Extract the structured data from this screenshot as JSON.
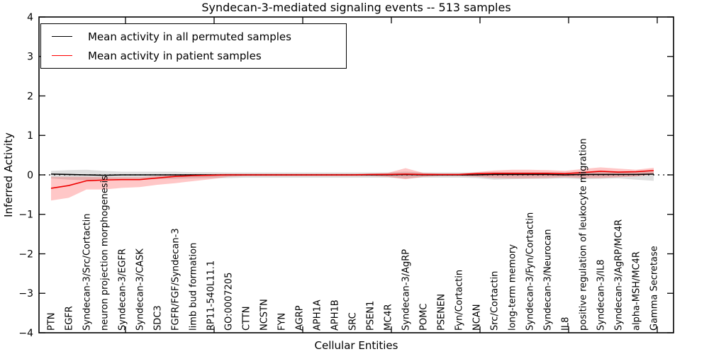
{
  "chart_data": {
    "type": "line",
    "title": "Syndecan-3-mediated signaling events -- 513 samples",
    "xlabel": "Cellular Entities",
    "ylabel": "Inferred Activity",
    "ylim": [
      -4,
      4
    ],
    "y_ticks": [
      4,
      3,
      2,
      1,
      0,
      -1,
      -2,
      -3,
      -4
    ],
    "grid": false,
    "zero_line_style": "dotted",
    "legend": {
      "position": "upper left",
      "entries": [
        {
          "label": "Mean activity in all permuted samples",
          "color": "#000000"
        },
        {
          "label": "Mean activity in patient samples",
          "color": "#ff0000"
        }
      ]
    },
    "categories": [
      "PTN",
      "EGFR",
      "Syndecan-3/Src/Cortactin",
      "neuron projection morphogenesis",
      "Syndecan-3/EGFR",
      "Syndecan-3/CASK",
      "SDC3",
      "FGFR/FGF/Syndecan-3",
      "limb bud formation",
      "RP11-540L11.1",
      "GO:0007205",
      "CTTN",
      "NCSTN",
      "FYN",
      "AGRP",
      "APH1A",
      "APH1B",
      "SRC",
      "PSEN1",
      "MC4R",
      "Syndecan-3/AgRP",
      "POMC",
      "PSENEN",
      "Fyn/Cortactin",
      "NCAN",
      "Src/Cortactin",
      "long-term memory",
      "Syndecan-3/Fyn/Cortactin",
      "Syndecan-3/Neurocan",
      "IL8",
      "positive regulation of leukocyte migration",
      "Syndecan-3/IL8",
      "Syndecan-3/AgRP/MC4R",
      "alpha-MSH/MC4R",
      "Gamma Secretase"
    ],
    "series": [
      {
        "name": "Mean activity in all permuted samples",
        "color": "#000000",
        "values": [
          0.02,
          0.01,
          0.0,
          -0.01,
          0.0,
          0.0,
          0.0,
          0.0,
          0.0,
          0.0,
          0.0,
          0.0,
          0.0,
          0.0,
          0.0,
          0.0,
          0.0,
          0.0,
          0.0,
          0.0,
          0.01,
          0.0,
          0.0,
          0.0,
          0.0,
          0.01,
          0.01,
          0.01,
          0.01,
          0.0,
          0.01,
          0.01,
          0.01,
          0.01,
          0.02
        ]
      },
      {
        "name": "Mean activity in patient samples",
        "color": "#ee0000",
        "values": [
          -0.34,
          -0.27,
          -0.15,
          -0.13,
          -0.12,
          -0.12,
          -0.08,
          -0.04,
          -0.02,
          -0.01,
          0.0,
          0.0,
          0.0,
          0.0,
          0.0,
          0.0,
          0.0,
          0.0,
          0.01,
          0.01,
          0.02,
          0.01,
          0.01,
          0.01,
          0.03,
          0.04,
          0.04,
          0.04,
          0.04,
          0.03,
          0.06,
          0.09,
          0.07,
          0.08,
          0.11
        ]
      }
    ],
    "bands": [
      {
        "name": "permuted-samples-range",
        "fill": "#000000",
        "opacity": 0.13,
        "upper": [
          0.1,
          0.12,
          0.13,
          0.1,
          0.08,
          0.08,
          0.08,
          0.08,
          0.07,
          0.07,
          0.06,
          0.06,
          0.06,
          0.06,
          0.06,
          0.06,
          0.06,
          0.06,
          0.06,
          0.06,
          0.08,
          0.06,
          0.06,
          0.06,
          0.06,
          0.07,
          0.07,
          0.07,
          0.07,
          0.06,
          0.08,
          0.07,
          0.07,
          0.08,
          0.09
        ],
        "lower": [
          -0.09,
          -0.12,
          -0.14,
          -0.12,
          -0.1,
          -0.1,
          -0.1,
          -0.1,
          -0.09,
          -0.08,
          -0.08,
          -0.07,
          -0.07,
          -0.07,
          -0.07,
          -0.07,
          -0.07,
          -0.07,
          -0.07,
          -0.07,
          -0.09,
          -0.07,
          -0.07,
          -0.07,
          -0.08,
          -0.12,
          -0.11,
          -0.1,
          -0.1,
          -0.09,
          -0.11,
          -0.1,
          -0.09,
          -0.12,
          -0.15
        ]
      },
      {
        "name": "patient-samples-range",
        "fill": "#ff0000",
        "opacity": 0.22,
        "upper": [
          -0.05,
          -0.05,
          -0.05,
          -0.06,
          -0.06,
          -0.06,
          -0.03,
          0.0,
          0.02,
          0.02,
          0.03,
          0.03,
          0.03,
          0.03,
          0.03,
          0.03,
          0.03,
          0.03,
          0.03,
          0.05,
          0.17,
          0.05,
          0.03,
          0.03,
          0.07,
          0.11,
          0.13,
          0.13,
          0.12,
          0.1,
          0.15,
          0.19,
          0.16,
          0.13,
          0.18
        ],
        "lower": [
          -0.65,
          -0.58,
          -0.37,
          -0.37,
          -0.33,
          -0.31,
          -0.25,
          -0.21,
          -0.16,
          -0.11,
          -0.05,
          -0.03,
          -0.03,
          -0.03,
          -0.03,
          -0.03,
          -0.03,
          -0.03,
          -0.03,
          -0.05,
          -0.11,
          -0.05,
          -0.03,
          -0.03,
          -0.05,
          -0.08,
          -0.09,
          -0.09,
          -0.08,
          -0.06,
          -0.08,
          -0.08,
          -0.06,
          -0.04,
          0.01
        ]
      }
    ]
  }
}
